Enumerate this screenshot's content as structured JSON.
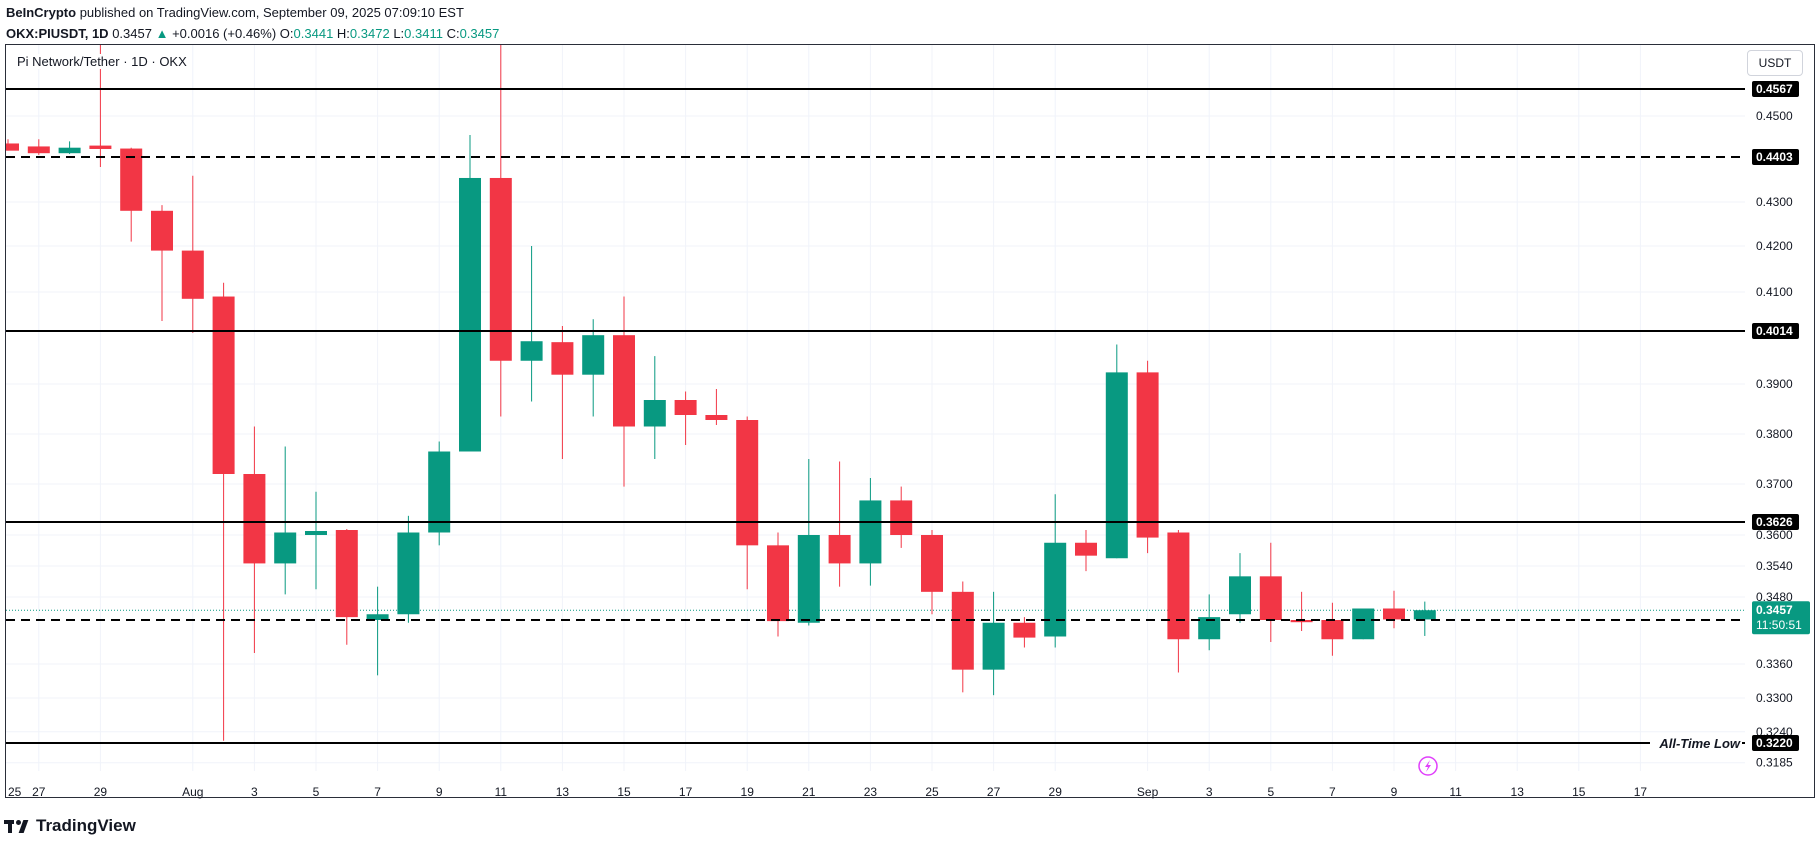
{
  "header": {
    "publisher": "BeInCrypto",
    "published_text": "published on TradingView.com, September 09, 2025 07:09:10 EST",
    "symbol": "OKX:PIUSDT, 1D",
    "last": "0.3457",
    "change": "+0.0016 (+0.46%)",
    "open_label": "O:",
    "open": "0.3441",
    "high_label": "H:",
    "high": "0.3472",
    "low_label": "L:",
    "low": "0.3411",
    "close_label": "C:",
    "close": "0.3457"
  },
  "symbol_label": "Pi Network/Tether · 1D · OKX",
  "currency": "USDT",
  "footer": {
    "brand": "TradingView"
  },
  "icons": {
    "replay": "lightning-icon",
    "logo": "tradingview-logo-icon"
  },
  "colors": {
    "up": "#089981",
    "down": "#f23645",
    "level": "#000000"
  },
  "chart_data": {
    "type": "candlestick",
    "x_tick_labels": [
      {
        "index": -1,
        "label": "25"
      },
      {
        "index": 1,
        "label": "27"
      },
      {
        "index": 3,
        "label": "29"
      },
      {
        "index": 6,
        "label": "Aug"
      },
      {
        "index": 8,
        "label": "3"
      },
      {
        "index": 10,
        "label": "5"
      },
      {
        "index": 12,
        "label": "7"
      },
      {
        "index": 14,
        "label": "9"
      },
      {
        "index": 16,
        "label": "11"
      },
      {
        "index": 18,
        "label": "13"
      },
      {
        "index": 20,
        "label": "15"
      },
      {
        "index": 22,
        "label": "17"
      },
      {
        "index": 24,
        "label": "19"
      },
      {
        "index": 26,
        "label": "21"
      },
      {
        "index": 28,
        "label": "23"
      },
      {
        "index": 30,
        "label": "25"
      },
      {
        "index": 32,
        "label": "27"
      },
      {
        "index": 34,
        "label": "29"
      },
      {
        "index": 37,
        "label": "Sep"
      },
      {
        "index": 39,
        "label": "3"
      },
      {
        "index": 41,
        "label": "5"
      },
      {
        "index": 43,
        "label": "7"
      },
      {
        "index": 45,
        "label": "9"
      },
      {
        "index": 47,
        "label": "11"
      },
      {
        "index": 49,
        "label": "13"
      },
      {
        "index": 51,
        "label": "15"
      },
      {
        "index": 53,
        "label": "17"
      }
    ],
    "y_ticks": [
      "0.4500",
      "0.4300",
      "0.4200",
      "0.4100",
      "0.3900",
      "0.3800",
      "0.3700",
      "0.3600",
      "0.3540",
      "0.3480",
      "0.3360",
      "0.3300",
      "0.3240",
      "0.3185"
    ],
    "candles": [
      {
        "o": 0.4435,
        "h": 0.4445,
        "l": 0.4418,
        "c": 0.4418
      },
      {
        "o": 0.4428,
        "h": 0.4445,
        "l": 0.4408,
        "c": 0.4412
      },
      {
        "o": 0.4412,
        "h": 0.444,
        "l": 0.441,
        "c": 0.4425
      },
      {
        "o": 0.443,
        "h": 0.469,
        "l": 0.438,
        "c": 0.4422
      },
      {
        "o": 0.4423,
        "h": 0.4425,
        "l": 0.421,
        "c": 0.428
      },
      {
        "o": 0.428,
        "h": 0.4293,
        "l": 0.4036,
        "c": 0.419
      },
      {
        "o": 0.419,
        "h": 0.436,
        "l": 0.401,
        "c": 0.4085
      },
      {
        "o": 0.409,
        "h": 0.412,
        "l": 0.3224,
        "c": 0.372
      },
      {
        "o": 0.372,
        "h": 0.3815,
        "l": 0.338,
        "c": 0.3545
      },
      {
        "o": 0.3545,
        "h": 0.3775,
        "l": 0.3485,
        "c": 0.3605
      },
      {
        "o": 0.36,
        "h": 0.3685,
        "l": 0.3495,
        "c": 0.3608
      },
      {
        "o": 0.361,
        "h": 0.3612,
        "l": 0.3395,
        "c": 0.3445
      },
      {
        "o": 0.344,
        "h": 0.35,
        "l": 0.334,
        "c": 0.345
      },
      {
        "o": 0.345,
        "h": 0.3638,
        "l": 0.3435,
        "c": 0.3605
      },
      {
        "o": 0.3605,
        "h": 0.3785,
        "l": 0.358,
        "c": 0.3765
      },
      {
        "o": 0.3765,
        "h": 0.4455,
        "l": 0.3765,
        "c": 0.4355
      },
      {
        "o": 0.4355,
        "h": 0.469,
        "l": 0.3835,
        "c": 0.395
      },
      {
        "o": 0.395,
        "h": 0.42,
        "l": 0.3865,
        "c": 0.3992
      },
      {
        "o": 0.399,
        "h": 0.4025,
        "l": 0.375,
        "c": 0.392
      },
      {
        "o": 0.392,
        "h": 0.404,
        "l": 0.3835,
        "c": 0.4005
      },
      {
        "o": 0.4005,
        "h": 0.409,
        "l": 0.3695,
        "c": 0.3815
      },
      {
        "o": 0.3815,
        "h": 0.396,
        "l": 0.375,
        "c": 0.3868
      },
      {
        "o": 0.3868,
        "h": 0.3885,
        "l": 0.3778,
        "c": 0.3838
      },
      {
        "o": 0.3838,
        "h": 0.389,
        "l": 0.3818,
        "c": 0.3828
      },
      {
        "o": 0.3828,
        "h": 0.3835,
        "l": 0.3495,
        "c": 0.358
      },
      {
        "o": 0.358,
        "h": 0.3605,
        "l": 0.341,
        "c": 0.3438
      },
      {
        "o": 0.3435,
        "h": 0.375,
        "l": 0.343,
        "c": 0.36
      },
      {
        "o": 0.36,
        "h": 0.3745,
        "l": 0.35,
        "c": 0.3545
      },
      {
        "o": 0.3545,
        "h": 0.3712,
        "l": 0.3502,
        "c": 0.3668
      },
      {
        "o": 0.3668,
        "h": 0.3695,
        "l": 0.3575,
        "c": 0.36
      },
      {
        "o": 0.36,
        "h": 0.361,
        "l": 0.345,
        "c": 0.349
      },
      {
        "o": 0.349,
        "h": 0.351,
        "l": 0.331,
        "c": 0.335
      },
      {
        "o": 0.335,
        "h": 0.349,
        "l": 0.3305,
        "c": 0.3435
      },
      {
        "o": 0.3435,
        "h": 0.3445,
        "l": 0.339,
        "c": 0.3408
      },
      {
        "o": 0.341,
        "h": 0.368,
        "l": 0.339,
        "c": 0.3585
      },
      {
        "o": 0.3585,
        "h": 0.361,
        "l": 0.353,
        "c": 0.356
      },
      {
        "o": 0.3555,
        "h": 0.3985,
        "l": 0.3555,
        "c": 0.3925
      },
      {
        "o": 0.3925,
        "h": 0.395,
        "l": 0.3565,
        "c": 0.3595
      },
      {
        "o": 0.3605,
        "h": 0.361,
        "l": 0.3345,
        "c": 0.3405
      },
      {
        "o": 0.3405,
        "h": 0.3485,
        "l": 0.3385,
        "c": 0.3445
      },
      {
        "o": 0.345,
        "h": 0.3565,
        "l": 0.3435,
        "c": 0.352
      },
      {
        "o": 0.352,
        "h": 0.3585,
        "l": 0.34,
        "c": 0.344
      },
      {
        "o": 0.344,
        "h": 0.349,
        "l": 0.342,
        "c": 0.3436
      },
      {
        "o": 0.344,
        "h": 0.347,
        "l": 0.3375,
        "c": 0.3405
      },
      {
        "o": 0.3405,
        "h": 0.346,
        "l": 0.3405,
        "c": 0.346
      },
      {
        "o": 0.346,
        "h": 0.3492,
        "l": 0.3425,
        "c": 0.3441
      },
      {
        "o": 0.3441,
        "h": 0.3472,
        "l": 0.3411,
        "c": 0.3457
      }
    ],
    "levels": [
      {
        "price": 0.4567,
        "label": "0.4567",
        "style": "solid"
      },
      {
        "price": 0.4403,
        "label": "0.4403",
        "style": "dashed"
      },
      {
        "price": 0.4014,
        "label": "0.4014",
        "style": "solid"
      },
      {
        "price": 0.3626,
        "label": "0.3626",
        "style": "solid"
      },
      {
        "price": 0.344,
        "label": "0.3440",
        "style": "dashed"
      },
      {
        "price": 0.322,
        "label": "0.3220",
        "style": "solid",
        "annotation": "All-Time Low"
      }
    ],
    "last_price": {
      "price": 0.3457,
      "label": "0.3457",
      "countdown": "11:50:51"
    }
  }
}
